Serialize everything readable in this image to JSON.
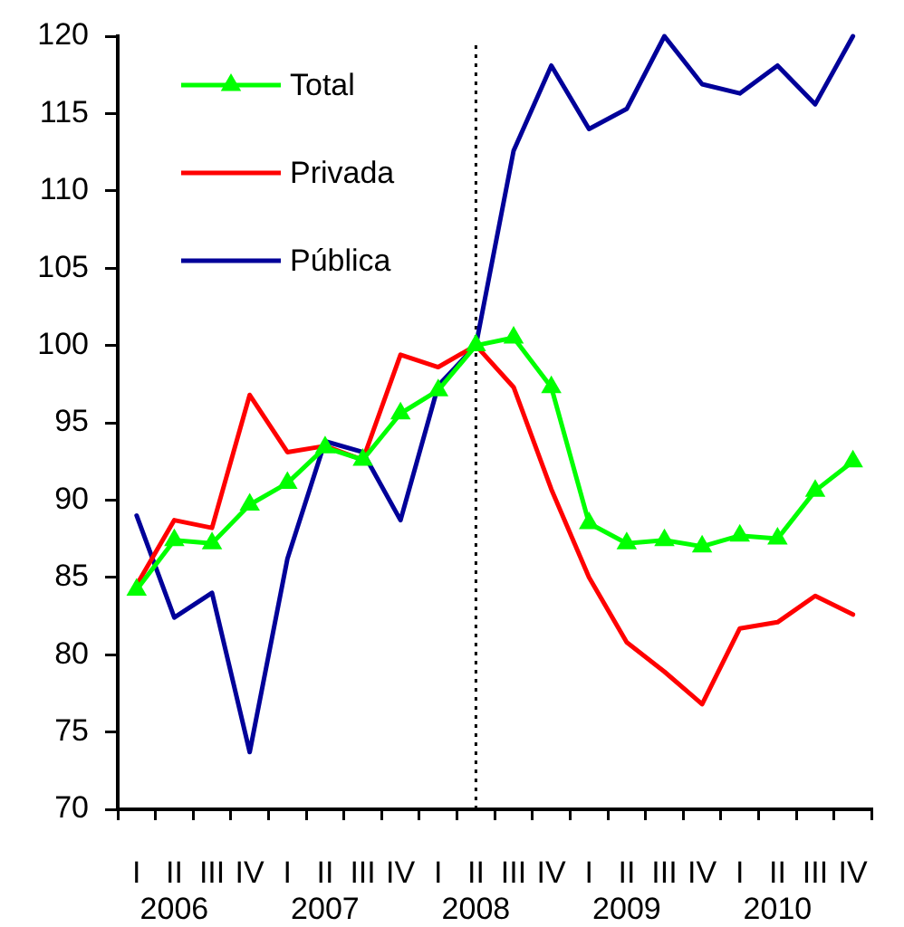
{
  "chart_data": {
    "type": "line",
    "categories": [
      "I",
      "II\n2006",
      "III",
      "IV",
      "I",
      "II\n2007",
      "III",
      "IV",
      "I",
      "II\n2008",
      "III",
      "IV",
      "I",
      "II\n2009",
      "III",
      "IV",
      "I",
      "II\n2010",
      "III",
      "IV"
    ],
    "series": [
      {
        "name": "Total",
        "color": "#00ff00",
        "marker": "triangle",
        "values": [
          84.2,
          87.4,
          87.2,
          89.7,
          91.1,
          93.4,
          92.6,
          95.6,
          97.1,
          100,
          100.5,
          97.3,
          88.5,
          87.2,
          87.4,
          87.0,
          87.7,
          87.5,
          90.6,
          92.5
        ]
      },
      {
        "name": "Privada",
        "color": "#ff0000",
        "values": [
          84.5,
          88.7,
          88.2,
          96.8,
          93.1,
          93.5,
          92.6,
          99.4,
          98.6,
          100,
          97.3,
          90.7,
          85.0,
          80.8,
          78.9,
          76.8,
          81.7,
          82.1,
          83.8,
          82.6
        ]
      },
      {
        "name": "Pública",
        "color": "#000099",
        "values": [
          89.0,
          82.4,
          84.0,
          73.7,
          86.2,
          93.8,
          93.1,
          88.7,
          97.4,
          100,
          112.6,
          118.1,
          114.0,
          115.3,
          120.0,
          116.9,
          116.3,
          118.1,
          115.6,
          120.0
        ]
      }
    ],
    "ylim": [
      70,
      120
    ],
    "yticks": [
      70,
      75,
      80,
      85,
      90,
      95,
      100,
      105,
      110,
      115,
      120
    ],
    "legend": "top left",
    "ref_lines": [
      {
        "axis": "x",
        "value": "II\n2008",
        "line_style": "dotted",
        "color": "#000000"
      }
    ]
  }
}
